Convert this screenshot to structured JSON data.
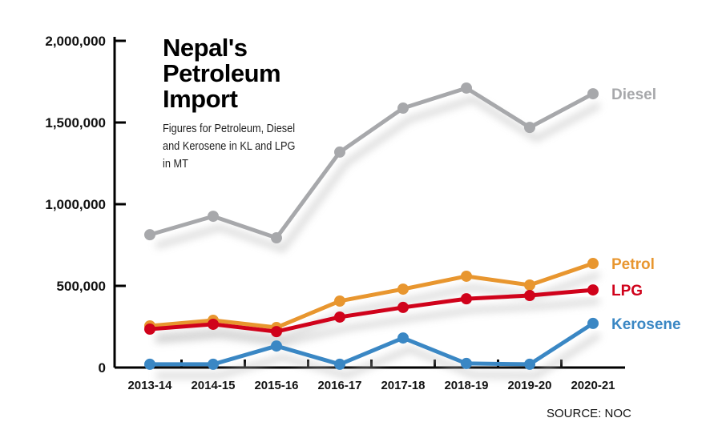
{
  "chart_data": {
    "type": "line",
    "title": "Nepal's Petroleum Import",
    "subtitle": "Figures for Petroleum, Diesel and Kerosene in KL and LPG in MT",
    "source": "SOURCE: NOC",
    "categories": [
      "2013-14",
      "2014-15",
      "2015-16",
      "2016-17",
      "2017-18",
      "2018-19",
      "2019-20",
      "2020-21"
    ],
    "ylim": [
      0,
      2000000
    ],
    "yticks": [
      0,
      500000,
      1000000,
      1500000,
      2000000
    ],
    "ytick_labels": [
      "0",
      "500,000",
      "1,000,000",
      "1,500,000",
      "2,000,000"
    ],
    "series": [
      {
        "name": "Diesel",
        "color": "#a7a8ab",
        "values": [
          813000,
          926000,
          794000,
          1319000,
          1588000,
          1711000,
          1470000,
          1676000
        ]
      },
      {
        "name": "Petrol",
        "color": "#e8962f",
        "values": [
          255000,
          289000,
          245000,
          407000,
          480000,
          559000,
          505000,
          637000
        ]
      },
      {
        "name": "LPG",
        "color": "#d0021b",
        "values": [
          235000,
          265000,
          220000,
          309000,
          368000,
          421000,
          441000,
          475000
        ]
      },
      {
        "name": "Kerosene",
        "color": "#3a87c4",
        "values": [
          20000,
          20000,
          132000,
          20000,
          181000,
          25000,
          20000,
          270000
        ]
      }
    ]
  }
}
